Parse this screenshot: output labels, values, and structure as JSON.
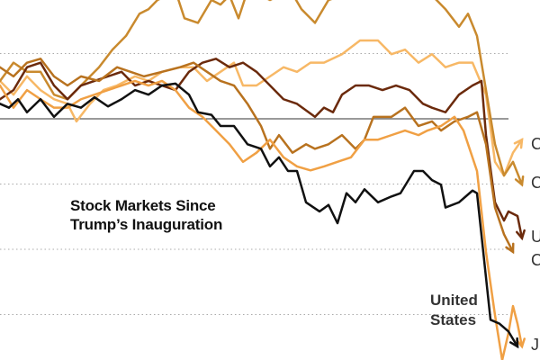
{
  "chart_data": {
    "type": "line",
    "title": "Stock Markets Since Trump’s Inauguration",
    "xlabel": "",
    "ylabel": "",
    "xlim": [
      0,
      120
    ],
    "ylim": [
      -37,
      18
    ],
    "gridlines": [
      10,
      0,
      -10,
      -20,
      -30
    ],
    "grid": true,
    "series": [
      {
        "label": "C",
        "color": "#f7b866",
        "points": [
          [
            0,
            5.8
          ],
          [
            3,
            3.7
          ],
          [
            6,
            6.5
          ],
          [
            9,
            4.4
          ],
          [
            12,
            3.0
          ],
          [
            15,
            2.3
          ],
          [
            17,
            -0.4
          ],
          [
            20,
            2.3
          ],
          [
            23,
            4.4
          ],
          [
            26,
            5.1
          ],
          [
            30,
            6.5
          ],
          [
            33,
            5.8
          ],
          [
            36,
            7.2
          ],
          [
            40,
            7.9
          ],
          [
            43,
            7.9
          ],
          [
            46,
            5.8
          ],
          [
            49,
            7.2
          ],
          [
            52,
            8.6
          ],
          [
            54,
            5.1
          ],
          [
            57,
            5.1
          ],
          [
            60,
            6.5
          ],
          [
            63,
            7.9
          ],
          [
            66,
            7.2
          ],
          [
            69,
            8.6
          ],
          [
            72,
            8.6
          ],
          [
            76,
            9.9
          ],
          [
            80,
            12.0
          ],
          [
            84,
            12.0
          ],
          [
            87,
            9.9
          ],
          [
            90,
            10.6
          ],
          [
            93,
            8.6
          ],
          [
            96,
            9.9
          ],
          [
            99,
            7.9
          ],
          [
            102,
            8.6
          ],
          [
            105,
            8.6
          ],
          [
            108,
            3.7
          ],
          [
            110,
            -6.6
          ],
          [
            112,
            -8.7
          ],
          [
            114,
            -5.2
          ],
          [
            116,
            -3.2
          ]
        ]
      },
      {
        "label": "C",
        "color": "#c98a2e",
        "points": [
          [
            0,
            5.8
          ],
          [
            3,
            8.6
          ],
          [
            6,
            7.2
          ],
          [
            9,
            7.2
          ],
          [
            12,
            3.7
          ],
          [
            15,
            3.0
          ],
          [
            18,
            5.1
          ],
          [
            22,
            7.9
          ],
          [
            25,
            10.6
          ],
          [
            28,
            12.7
          ],
          [
            31,
            16.1
          ],
          [
            33,
            16.8
          ],
          [
            35,
            18.2
          ],
          [
            37,
            18.9
          ],
          [
            39,
            19.6
          ],
          [
            41,
            15.4
          ],
          [
            44,
            14.7
          ],
          [
            47,
            18.2
          ],
          [
            49,
            17.5
          ],
          [
            51,
            18.9
          ],
          [
            53,
            15.4
          ],
          [
            55,
            19.6
          ],
          [
            58,
            18.9
          ],
          [
            60,
            18.2
          ],
          [
            62,
            18.9
          ],
          [
            64,
            20.3
          ],
          [
            67,
            16.8
          ],
          [
            70,
            14.7
          ],
          [
            73,
            18.2
          ],
          [
            76,
            18.9
          ],
          [
            80,
            19.6
          ],
          [
            84,
            20.3
          ],
          [
            88,
            18.9
          ],
          [
            92,
            19.6
          ],
          [
            96,
            18.9
          ],
          [
            99,
            16.8
          ],
          [
            102,
            14.1
          ],
          [
            104,
            16.1
          ],
          [
            106,
            12.7
          ],
          [
            108,
            4.4
          ],
          [
            110,
            -3.9
          ],
          [
            112,
            -8.7
          ],
          [
            114,
            -6.6
          ],
          [
            116,
            -10.1
          ]
        ]
      },
      {
        "label": "U",
        "color": "#6b2a0c",
        "points": [
          [
            0,
            3.0
          ],
          [
            3,
            4.4
          ],
          [
            6,
            7.9
          ],
          [
            9,
            8.6
          ],
          [
            12,
            5.1
          ],
          [
            15,
            3.0
          ],
          [
            18,
            5.1
          ],
          [
            21,
            5.8
          ],
          [
            24,
            6.5
          ],
          [
            27,
            7.2
          ],
          [
            30,
            5.1
          ],
          [
            33,
            5.8
          ],
          [
            36,
            5.1
          ],
          [
            39,
            4.4
          ],
          [
            42,
            7.2
          ],
          [
            45,
            8.6
          ],
          [
            48,
            9.2
          ],
          [
            51,
            7.9
          ],
          [
            54,
            8.6
          ],
          [
            57,
            7.2
          ],
          [
            60,
            5.1
          ],
          [
            63,
            3.0
          ],
          [
            66,
            2.3
          ],
          [
            70,
            0.3
          ],
          [
            72,
            1.7
          ],
          [
            74,
            1.0
          ],
          [
            76,
            3.7
          ],
          [
            79,
            5.1
          ],
          [
            82,
            5.1
          ],
          [
            85,
            4.4
          ],
          [
            88,
            5.1
          ],
          [
            91,
            4.4
          ],
          [
            94,
            2.3
          ],
          [
            96,
            1.7
          ],
          [
            99,
            1.0
          ],
          [
            102,
            3.7
          ],
          [
            105,
            5.1
          ],
          [
            107,
            5.8
          ],
          [
            108,
            -2.5
          ],
          [
            110,
            -12.8
          ],
          [
            112,
            -15.6
          ],
          [
            113,
            -14.2
          ],
          [
            115,
            -14.9
          ],
          [
            116,
            -18.3
          ]
        ]
      },
      {
        "label": "C",
        "color": "#b8721f",
        "points": [
          [
            0,
            7.9
          ],
          [
            3,
            6.5
          ],
          [
            6,
            8.6
          ],
          [
            9,
            9.2
          ],
          [
            12,
            6.5
          ],
          [
            15,
            5.1
          ],
          [
            18,
            6.5
          ],
          [
            22,
            5.8
          ],
          [
            26,
            7.9
          ],
          [
            29,
            7.2
          ],
          [
            32,
            6.5
          ],
          [
            36,
            7.2
          ],
          [
            40,
            7.9
          ],
          [
            43,
            8.6
          ],
          [
            46,
            7.2
          ],
          [
            49,
            5.8
          ],
          [
            52,
            5.1
          ],
          [
            55,
            2.3
          ],
          [
            58,
            -1.1
          ],
          [
            60,
            -4.6
          ],
          [
            62,
            -2.5
          ],
          [
            65,
            -5.2
          ],
          [
            68,
            -3.9
          ],
          [
            70,
            -4.6
          ],
          [
            73,
            -3.9
          ],
          [
            76,
            -2.5
          ],
          [
            79,
            -4.6
          ],
          [
            81,
            -3.2
          ],
          [
            83,
            0.3
          ],
          [
            85,
            0.3
          ],
          [
            87,
            0.3
          ],
          [
            90,
            1.7
          ],
          [
            93,
            -1.1
          ],
          [
            96,
            -0.4
          ],
          [
            98,
            -1.8
          ],
          [
            101,
            -0.4
          ],
          [
            104,
            0.3
          ],
          [
            106,
            1.0
          ],
          [
            108,
            -3.9
          ],
          [
            110,
            -13.6
          ],
          [
            112,
            -17.7
          ],
          [
            114,
            -20.4
          ]
        ]
      },
      {
        "label": "J",
        "color": "#f0a044",
        "points": [
          [
            0,
            5.1
          ],
          [
            3,
            1.7
          ],
          [
            6,
            4.4
          ],
          [
            9,
            3.0
          ],
          [
            12,
            1.7
          ],
          [
            15,
            1.7
          ],
          [
            18,
            3.0
          ],
          [
            21,
            3.7
          ],
          [
            24,
            4.4
          ],
          [
            27,
            5.1
          ],
          [
            30,
            5.8
          ],
          [
            33,
            5.1
          ],
          [
            36,
            5.8
          ],
          [
            39,
            4.4
          ],
          [
            42,
            1.7
          ],
          [
            45,
            0.3
          ],
          [
            48,
            -1.8
          ],
          [
            51,
            -3.9
          ],
          [
            54,
            -6.6
          ],
          [
            57,
            -5.2
          ],
          [
            60,
            -3.2
          ],
          [
            63,
            -5.9
          ],
          [
            66,
            -7.3
          ],
          [
            69,
            -7.9
          ],
          [
            72,
            -7.3
          ],
          [
            75,
            -6.6
          ],
          [
            78,
            -5.9
          ],
          [
            81,
            -3.2
          ],
          [
            84,
            -3.2
          ],
          [
            87,
            -2.5
          ],
          [
            90,
            -1.8
          ],
          [
            93,
            -2.5
          ],
          [
            95,
            -1.8
          ],
          [
            98,
            -1.1
          ],
          [
            101,
            0.3
          ],
          [
            103,
            -1.8
          ],
          [
            106,
            -8.0
          ],
          [
            108,
            -20.4
          ],
          [
            110,
            -30.1
          ],
          [
            111.6,
            -37.0
          ],
          [
            113,
            -32.8
          ],
          [
            114,
            -28.7
          ],
          [
            115,
            -31.4
          ],
          [
            116,
            -34.9
          ]
        ]
      },
      {
        "label": "United States",
        "color": "#111111",
        "points": [
          [
            0,
            2.3
          ],
          [
            2,
            1.7
          ],
          [
            4,
            3.0
          ],
          [
            6,
            1.0
          ],
          [
            9,
            3.0
          ],
          [
            12,
            0.3
          ],
          [
            15,
            2.3
          ],
          [
            18,
            1.7
          ],
          [
            21,
            3.3
          ],
          [
            24,
            1.9
          ],
          [
            27,
            3.0
          ],
          [
            30,
            4.4
          ],
          [
            33,
            3.7
          ],
          [
            36,
            5.1
          ],
          [
            39,
            5.4
          ],
          [
            42,
            3.7
          ],
          [
            44,
            1.0
          ],
          [
            47,
            0.6
          ],
          [
            49,
            -1.1
          ],
          [
            52,
            -1.1
          ],
          [
            55,
            -3.9
          ],
          [
            58,
            -4.6
          ],
          [
            60,
            -7.3
          ],
          [
            62,
            -5.9
          ],
          [
            64,
            -8.0
          ],
          [
            66,
            -8.0
          ],
          [
            68,
            -12.8
          ],
          [
            71,
            -14.2
          ],
          [
            73,
            -13.2
          ],
          [
            75,
            -16.0
          ],
          [
            77,
            -11.4
          ],
          [
            79,
            -12.8
          ],
          [
            81,
            -10.8
          ],
          [
            84,
            -12.8
          ],
          [
            87,
            -11.9
          ],
          [
            89,
            -11.4
          ],
          [
            92,
            -8.0
          ],
          [
            94,
            -8.0
          ],
          [
            96,
            -9.4
          ],
          [
            98,
            -10.1
          ],
          [
            99,
            -13.6
          ],
          [
            102,
            -12.8
          ],
          [
            105,
            -11.0
          ],
          [
            106,
            -11.4
          ],
          [
            109,
            -30.8
          ],
          [
            111,
            -31.4
          ],
          [
            113,
            -32.6
          ],
          [
            115,
            -34.9
          ]
        ]
      }
    ],
    "annotations": {
      "title_line1": "Stock Markets Since",
      "title_line2": "Trump’s Inauguration",
      "us_line1": "United",
      "us_line2": "States"
    }
  }
}
